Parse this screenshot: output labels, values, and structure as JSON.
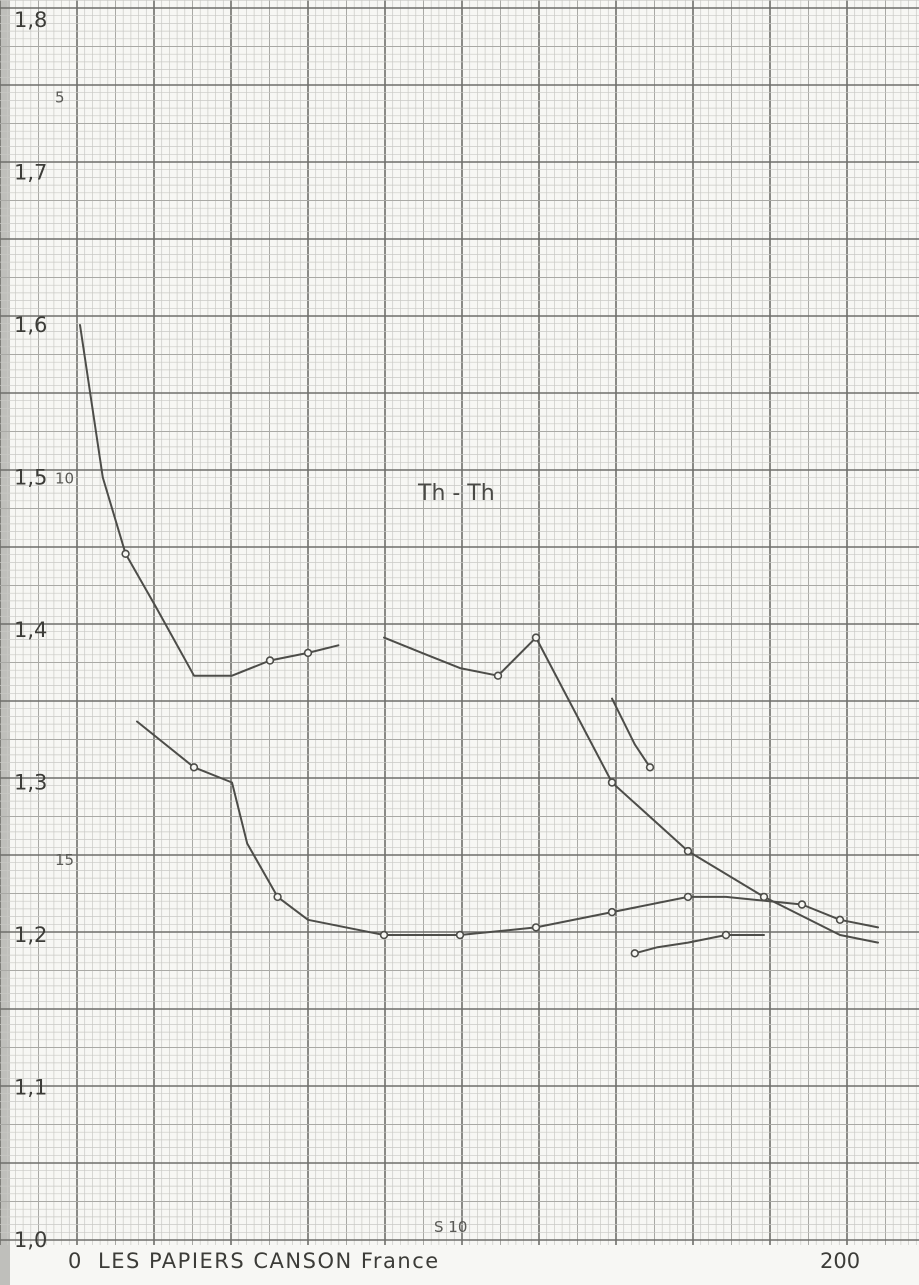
{
  "chart_data": {
    "type": "line",
    "title": "",
    "xlabel": "",
    "ylabel": "",
    "xlim": [
      0,
      210
    ],
    "ylim": [
      1.0,
      1.8
    ],
    "grid": true,
    "y_tick_labels": [
      "1,8",
      "1,7",
      "1,6",
      "1,5",
      "1,4",
      "1,3",
      "1,2",
      "1,1",
      "1,0"
    ],
    "y_ticks": [
      1.8,
      1.7,
      1.6,
      1.5,
      1.4,
      1.3,
      1.2,
      1.1,
      1.0
    ],
    "x_tick_labels": [
      "0",
      "200"
    ],
    "x_ticks": [
      0,
      200
    ],
    "minor_marks": [
      {
        "text": "5",
        "y": 1.75
      },
      {
        "text": "10",
        "y": 1.5
      },
      {
        "text": "15",
        "y": 1.25
      }
    ],
    "annotation": "Th - Th",
    "bottom_stamp": "S 10",
    "footer": "LES PAPIERS CANSON France",
    "series": [
      {
        "x": [
          0,
          6,
          12,
          20,
          30,
          40,
          50,
          60,
          68
        ],
        "y": [
          1.6,
          1.5,
          1.45,
          1.415,
          1.37,
          1.37,
          1.38,
          1.385,
          1.39
        ],
        "markers": [
          false,
          false,
          true,
          false,
          false,
          false,
          true,
          true,
          false
        ]
      },
      {
        "x": [
          80,
          90,
          100,
          110,
          120,
          140,
          160,
          180,
          200,
          210
        ],
        "y": [
          1.395,
          1.385,
          1.375,
          1.37,
          1.395,
          1.3,
          1.255,
          1.225,
          1.2,
          1.195
        ],
        "markers": [
          false,
          false,
          false,
          true,
          true,
          true,
          true,
          true,
          false,
          false
        ]
      },
      {
        "x": [
          140,
          146,
          150
        ],
        "y": [
          1.355,
          1.325,
          1.31
        ],
        "markers": [
          false,
          false,
          true
        ]
      },
      {
        "x": [
          15,
          30,
          40,
          44,
          52,
          60,
          80,
          100,
          120,
          140,
          160,
          170,
          190,
          200,
          210
        ],
        "y": [
          1.34,
          1.31,
          1.3,
          1.26,
          1.225,
          1.21,
          1.2,
          1.2,
          1.205,
          1.215,
          1.225,
          1.225,
          1.22,
          1.21,
          1.205
        ],
        "markers": [
          false,
          true,
          false,
          false,
          true,
          false,
          true,
          true,
          true,
          true,
          true,
          false,
          true,
          true,
          false
        ]
      },
      {
        "x": [
          146,
          152,
          160,
          170,
          180
        ],
        "y": [
          1.188,
          1.192,
          1.195,
          1.2,
          1.2
        ],
        "markers": [
          true,
          false,
          false,
          true,
          false
        ]
      }
    ]
  }
}
